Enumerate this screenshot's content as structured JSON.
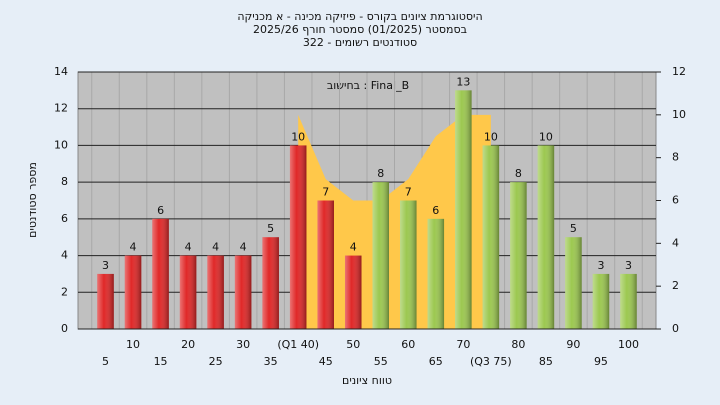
{
  "chart_data": {
    "type": "bar",
    "title": [
      "היסטוגרמת ציונים בקורס - פיזיקה מכינה - א מכניקה",
      "בסמסטר  (01/2025)  סמסטר חורף 2025/26",
      "סטודנטים רשומים - 322"
    ],
    "annotation": "Final_B : בחישוב",
    "x_label": "טווח ציונים",
    "y_label": "מספר סטודנטים",
    "categories": [
      "5",
      "10",
      "15",
      "20",
      "25",
      "30",
      "35",
      "(Q1 40)",
      "45",
      "50",
      "55",
      "60",
      "65",
      "70",
      "(Q3 75)",
      "80",
      "85",
      "90",
      "95",
      "100"
    ],
    "values": [
      3,
      4,
      6,
      4,
      4,
      4,
      5,
      10,
      7,
      4,
      8,
      7,
      6,
      13,
      10,
      8,
      10,
      5,
      3,
      3
    ],
    "colors": [
      "#e02828",
      "#e02828",
      "#e02828",
      "#e02828",
      "#e02828",
      "#e02828",
      "#e02828",
      "#e02828",
      "#e02828",
      "#e02828",
      "#9cc850",
      "#9cc850",
      "#9cc850",
      "#9cc850",
      "#9cc850",
      "#9cc850",
      "#9cc850",
      "#9cc850",
      "#9cc850",
      "#9cc850"
    ],
    "area": {
      "x": [
        40,
        45,
        50,
        55,
        60,
        65,
        70,
        75
      ],
      "values": [
        10,
        7,
        6,
        6,
        7,
        9,
        10,
        10
      ],
      "color": "#ffc84a",
      "axis": "y2"
    },
    "ylim": [
      0,
      14
    ],
    "yticks": [
      0,
      2,
      4,
      6,
      8,
      10,
      12,
      14
    ],
    "y2lim": [
      0,
      12
    ],
    "y2ticks": [
      0,
      2,
      4,
      6,
      8,
      10,
      12
    ],
    "grid": true
  }
}
